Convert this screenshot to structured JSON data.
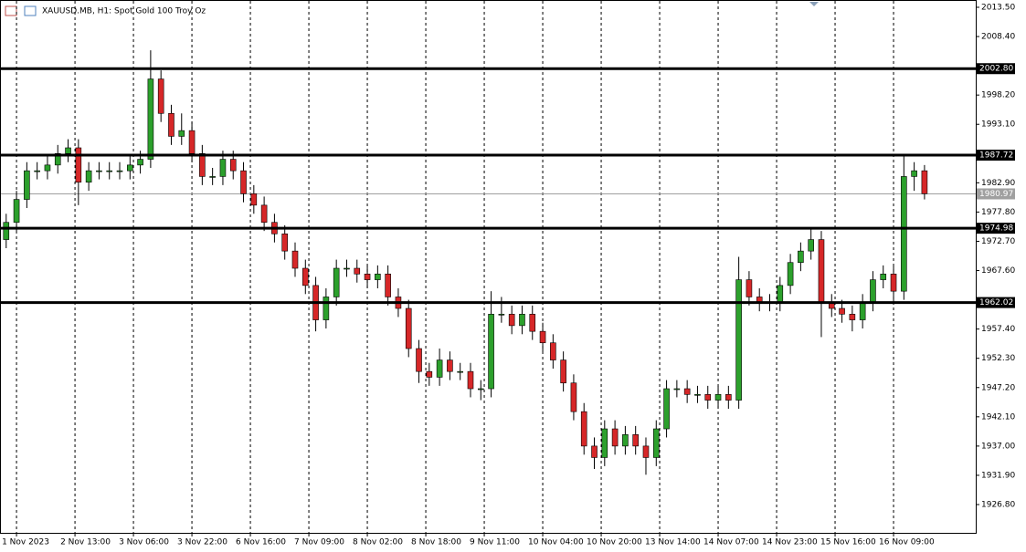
{
  "chart_data": {
    "type": "candlestick",
    "title": "XAUUSD.MB, H1:  Spot Gold 100 Troy Oz",
    "up_color": "#2ca02c",
    "down_color": "#d62728",
    "x": [
      -3,
      0,
      3,
      6,
      9,
      12,
      15,
      18,
      21,
      24,
      27,
      30,
      33,
      36,
      39,
      42,
      45,
      48,
      51,
      54,
      57,
      60,
      63,
      66,
      69,
      72,
      75,
      78,
      81,
      84,
      87,
      90,
      93,
      96,
      99,
      102,
      105,
      108,
      111,
      114,
      117,
      120,
      123,
      126,
      129,
      132,
      135,
      138,
      141,
      144,
      147,
      150,
      153,
      156,
      159,
      162,
      165,
      168,
      171,
      174,
      177,
      180,
      183,
      186,
      189,
      192,
      195,
      198,
      201,
      204,
      207,
      210,
      213,
      216,
      219,
      222,
      225,
      228,
      231,
      234,
      237,
      240,
      243,
      246,
      249,
      252,
      255,
      258,
      261,
      264
    ],
    "open": [
      1973,
      1976,
      1980,
      1985,
      1985,
      1986,
      1988,
      1989,
      1983,
      1985,
      1985,
      1985,
      1985,
      1986,
      1987,
      2001,
      1995,
      1991,
      1992,
      1988,
      1984,
      1984,
      1987,
      1985,
      1981,
      1979,
      1976,
      1974,
      1971,
      1968,
      1965,
      1959,
      1963,
      1968,
      1968,
      1967,
      1966,
      1967,
      1963,
      1961,
      1954,
      1950,
      1949,
      1952,
      1950,
      1950,
      1947,
      1947,
      1960,
      1960,
      1958,
      1960,
      1957,
      1955,
      1952,
      1948,
      1943,
      1937,
      1935,
      1940,
      1937,
      1939,
      1937,
      1935,
      1940,
      1947,
      1947,
      1946,
      1946,
      1945,
      1946,
      1945,
      1966,
      1963,
      1962,
      1962,
      1965,
      1969,
      1971,
      1973,
      1962,
      1961,
      1960,
      1959,
      1962,
      1966,
      1967,
      1964,
      1984,
      1985
    ],
    "high": [
      1977.5,
      1981.5,
      1986.5,
      1986.5,
      1987.5,
      1989.5,
      1990.5,
      1990.5,
      1986.5,
      1986.5,
      1986.5,
      1986.5,
      1987.5,
      1988.5,
      2006,
      2002.5,
      1996.5,
      1995,
      1993.5,
      1989.5,
      1985.5,
      1988.5,
      1988.5,
      1986.5,
      1982.5,
      1980.5,
      1977.5,
      1975.5,
      1972.5,
      1969.5,
      1966.5,
      1964.5,
      1969.5,
      1969.5,
      1969.5,
      1968.5,
      1968.5,
      1968.5,
      1964.5,
      1962.5,
      1955.5,
      1951.5,
      1954,
      1953.5,
      1951.5,
      1951.5,
      1948.5,
      1964,
      1963,
      1961.5,
      1961.5,
      1961.5,
      1958.5,
      1956.5,
      1953.5,
      1949.5,
      1944.5,
      1938.5,
      1941.5,
      1941.5,
      1940.5,
      1940.5,
      1938.5,
      1941.5,
      1948.5,
      1948.5,
      1948.5,
      1947.5,
      1947.5,
      1947.5,
      1947.5,
      1970,
      1967.5,
      1964.5,
      1963.5,
      1966.5,
      1970.5,
      1972.5,
      1975,
      1974.5,
      1963.5,
      1962.5,
      1961.5,
      1963.5,
      1967.5,
      1968.5,
      1968.5,
      1987.5,
      1986.5,
      1986
    ],
    "low": [
      1971.5,
      1974.5,
      1978.5,
      1983.5,
      1983.5,
      1984.5,
      1986.5,
      1979,
      1981.5,
      1983.5,
      1983.5,
      1983.5,
      1983.5,
      1984.5,
      1985.5,
      1993.5,
      1989.5,
      1989.5,
      1986.5,
      1982.5,
      1982.5,
      1982.5,
      1983.5,
      1979.5,
      1977.5,
      1974.5,
      1972.5,
      1969.5,
      1966.5,
      1963.5,
      1957,
      1957.5,
      1961.5,
      1966.5,
      1965.5,
      1964.5,
      1964.5,
      1961.5,
      1959.5,
      1952.5,
      1948,
      1947.5,
      1947.5,
      1948.5,
      1948.5,
      1945.5,
      1945,
      1945.5,
      1958.5,
      1956.5,
      1956.5,
      1955.5,
      1953.5,
      1950.5,
      1946.5,
      1941.5,
      1935.5,
      1933,
      1933.5,
      1935.5,
      1935.5,
      1935.5,
      1932,
      1933.5,
      1938.5,
      1945.5,
      1944.5,
      1944.5,
      1943.5,
      1943.5,
      1943.5,
      1943.5,
      1961.5,
      1960.5,
      1960.5,
      1960.5,
      1963.5,
      1967.5,
      1969.5,
      1956,
      1959.5,
      1958.5,
      1957,
      1957.5,
      1960.5,
      1964.5,
      1962,
      1962.5,
      1981.5,
      1980
    ],
    "close": [
      1976,
      1980,
      1985,
      1985,
      1986,
      1988,
      1989,
      1983,
      1985,
      1985,
      1985,
      1985,
      1986,
      1987,
      2001,
      1995,
      1991,
      1992,
      1988,
      1984,
      1984,
      1987,
      1985,
      1981,
      1979,
      1976,
      1974,
      1971,
      1968,
      1965,
      1959,
      1963,
      1968,
      1968,
      1967,
      1966,
      1967,
      1963,
      1961,
      1954,
      1950,
      1949,
      1952,
      1950,
      1950,
      1947,
      1947,
      1960,
      1960,
      1958,
      1960,
      1957,
      1955,
      1952,
      1948,
      1943,
      1937,
      1935,
      1940,
      1937,
      1939,
      1937,
      1935,
      1940,
      1947,
      1947,
      1946,
      1946,
      1945,
      1946,
      1945,
      1966,
      1963,
      1962,
      1962,
      1965,
      1969,
      1971,
      1973,
      1962,
      1961,
      1960,
      1959,
      1962,
      1966,
      1967,
      1964,
      1984,
      1985,
      1981
    ],
    "xlim": [
      -4.8,
      278.9
    ],
    "ylim": [
      1921.87,
      2014.77
    ],
    "xticks": [
      {
        "value": 0,
        "label": "1 Nov 2023"
      },
      {
        "value": 17,
        "label": "2 Nov 13:00"
      },
      {
        "value": 34,
        "label": "3 Nov 06:00"
      },
      {
        "value": 51,
        "label": "3 Nov 22:00"
      },
      {
        "value": 68,
        "label": "6 Nov 16:00"
      },
      {
        "value": 85,
        "label": "7 Nov 09:00"
      },
      {
        "value": 102,
        "label": "8 Nov 02:00"
      },
      {
        "value": 119,
        "label": "8 Nov 18:00"
      },
      {
        "value": 136,
        "label": "9 Nov 11:00"
      },
      {
        "value": 153,
        "label": "10 Nov 04:00"
      },
      {
        "value": 170,
        "label": "10 Nov 20:00"
      },
      {
        "value": 187,
        "label": "13 Nov 14:00"
      },
      {
        "value": 204,
        "label": "14 Nov 07:00"
      },
      {
        "value": 221,
        "label": "14 Nov 23:00"
      },
      {
        "value": 238,
        "label": "15 Nov 16:00"
      },
      {
        "value": 255,
        "label": "16 Nov 09:00"
      }
    ],
    "yticks": [
      {
        "value": 2013.5,
        "label": "2013.50"
      },
      {
        "value": 2008.4,
        "label": "2008.40"
      },
      {
        "value": 1998.2,
        "label": "1998.20"
      },
      {
        "value": 1993.1,
        "label": "1993.10"
      },
      {
        "value": 1982.9,
        "label": "1982.90"
      },
      {
        "value": 1977.8,
        "label": "1977.80"
      },
      {
        "value": 1972.7,
        "label": "1972.70"
      },
      {
        "value": 1967.6,
        "label": "1967.60"
      },
      {
        "value": 1957.4,
        "label": "1957.40"
      },
      {
        "value": 1952.3,
        "label": "1952.30"
      },
      {
        "value": 1947.2,
        "label": "1947.20"
      },
      {
        "value": 1942.1,
        "label": "1942.10"
      },
      {
        "value": 1937,
        "label": "1937.00"
      },
      {
        "value": 1931.9,
        "label": "1931.90"
      },
      {
        "value": 1926.8,
        "label": "1926.80"
      }
    ],
    "levels": [
      {
        "value": 2002.8,
        "label": "2002.80"
      },
      {
        "value": 1987.72,
        "label": "1987.72"
      },
      {
        "value": 1974.98,
        "label": "1974.98"
      },
      {
        "value": 1962.02,
        "label": "1962.02"
      }
    ],
    "current_price": {
      "value": 1980.97,
      "label": "1980.97"
    }
  }
}
